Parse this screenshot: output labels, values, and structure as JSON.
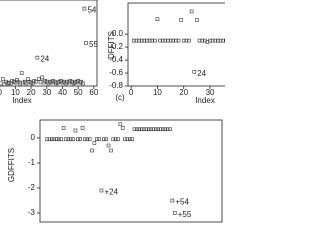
{
  "chart_data": [
    {
      "type": "scatter",
      "xlabel": "Index",
      "x": [
        1,
        2,
        3,
        4,
        5,
        6,
        7,
        8,
        9,
        10,
        11,
        12,
        13,
        14,
        15,
        16,
        17,
        18,
        19,
        20,
        21,
        22,
        23,
        24,
        25,
        26,
        27,
        28,
        29,
        30,
        31,
        32,
        33,
        34,
        35,
        36,
        37,
        38,
        39,
        40,
        41,
        42,
        43,
        44,
        45,
        46,
        47,
        48,
        49,
        50,
        51,
        52,
        53,
        54,
        55
      ],
      "values": [
        0.03,
        0.08,
        0.02,
        0.05,
        0.03,
        0.04,
        0.03,
        0.06,
        0.05,
        0.04,
        0.07,
        0.05,
        0.03,
        0.15,
        0.04,
        0.05,
        0.03,
        0.08,
        0.05,
        0.04,
        0.03,
        0.06,
        0.05,
        0.33,
        0.08,
        0.05,
        0.1,
        0.04,
        0.06,
        0.05,
        0.03,
        0.05,
        0.04,
        0.06,
        0.05,
        0.03,
        0.04,
        0.05,
        0.06,
        0.04,
        0.05,
        0.03,
        0.05,
        0.04,
        0.06,
        0.05,
        0.03,
        0.04,
        0.05,
        0.06,
        0.04,
        0.05,
        0.03,
        0.9,
        0.5
      ],
      "xlim": [
        -3,
        62
      ],
      "ylim": [
        0,
        1
      ],
      "xticks": [
        0,
        10,
        20,
        30,
        40,
        50,
        60
      ],
      "point_labels": [
        {
          "label": "24",
          "x": 24,
          "y": 0.33
        },
        {
          "label": "54",
          "x": 54,
          "y": 0.9
        },
        {
          "label": "55",
          "x": 55,
          "y": 0.5
        }
      ],
      "color": "#333333"
    },
    {
      "type": "scatter",
      "xlabel": "Index",
      "ylabel": "DFFITS",
      "x": [
        1,
        2,
        3,
        4,
        5,
        6,
        7,
        8,
        9,
        10,
        11,
        12,
        13,
        14,
        15,
        16,
        17,
        18,
        19,
        20,
        21,
        22,
        23,
        24,
        25,
        26,
        27,
        28,
        29,
        30,
        31,
        32,
        33,
        34,
        35,
        36,
        37,
        38
      ],
      "values": [
        -0.1,
        -0.1,
        -0.1,
        -0.1,
        -0.1,
        -0.1,
        -0.1,
        -0.1,
        -0.1,
        0.23,
        -0.1,
        -0.1,
        -0.1,
        -0.1,
        -0.1,
        -0.1,
        -0.1,
        -0.1,
        0.22,
        -0.1,
        -0.1,
        -0.1,
        0.35,
        -0.58,
        0.22,
        -0.1,
        -0.1,
        -0.1,
        -0.12,
        -0.1,
        -0.1,
        -0.1,
        -0.1,
        -0.1,
        -0.1,
        -0.1,
        -0.1,
        -0.1
      ],
      "xlim": [
        -1.2,
        37.6
      ],
      "ylim": [
        -0.8,
        0.48
      ],
      "xticks": [
        0,
        10,
        20,
        30
      ],
      "yticks": [
        {
          "value": 0,
          "label": "0.0"
        },
        -0.2,
        -0.4,
        -0.6,
        -0.8
      ],
      "point_labels": [
        {
          "label": "24",
          "x": 24,
          "y": -0.58
        }
      ],
      "color": "#333333"
    },
    {
      "type": "scatter",
      "title": "(c)",
      "ylabel": "GDFFITS",
      "x": [
        1,
        2,
        3,
        4,
        5,
        6,
        7,
        8,
        9,
        10,
        11,
        12,
        13,
        14,
        15,
        16,
        17,
        18,
        19,
        20,
        21,
        22,
        23,
        24,
        25,
        26,
        27,
        28,
        29,
        30,
        31,
        32,
        33,
        34,
        35,
        36,
        37,
        38,
        39,
        40,
        41,
        42,
        43,
        44,
        45,
        46,
        47,
        48,
        49,
        50,
        51,
        52,
        53,
        54,
        55
      ],
      "values": [
        -0.05,
        -0.05,
        -0.05,
        -0.05,
        -0.05,
        -0.05,
        -0.05,
        0.4,
        -0.05,
        -0.05,
        -0.05,
        -0.05,
        0.3,
        -0.05,
        -0.05,
        0.4,
        -0.05,
        -0.05,
        -0.05,
        -0.5,
        -0.2,
        -0.05,
        -0.05,
        -2.1,
        -0.05,
        -0.05,
        -0.3,
        -0.5,
        -0.05,
        -0.05,
        -0.05,
        0.55,
        0.4,
        -0.05,
        -0.05,
        -0.05,
        -0.05,
        0.35,
        0.35,
        0.35,
        0.35,
        0.35,
        0.35,
        0.35,
        0.35,
        0.35,
        0.35,
        0.35,
        0.35,
        0.35,
        0.35,
        0.35,
        0.35,
        -2.5,
        -3.0
      ],
      "xlim": [
        -2,
        75
      ],
      "ylim": [
        -3.36,
        0.72
      ],
      "yticks": [
        0,
        -1,
        -2,
        -3
      ],
      "point_labels": [
        {
          "label": "+24",
          "x": 24,
          "y": -2.1
        },
        {
          "label": "+54",
          "x": 54,
          "y": -2.5
        },
        {
          "label": "+55",
          "x": 55,
          "y": -3.0
        }
      ],
      "color": "#333333"
    }
  ]
}
